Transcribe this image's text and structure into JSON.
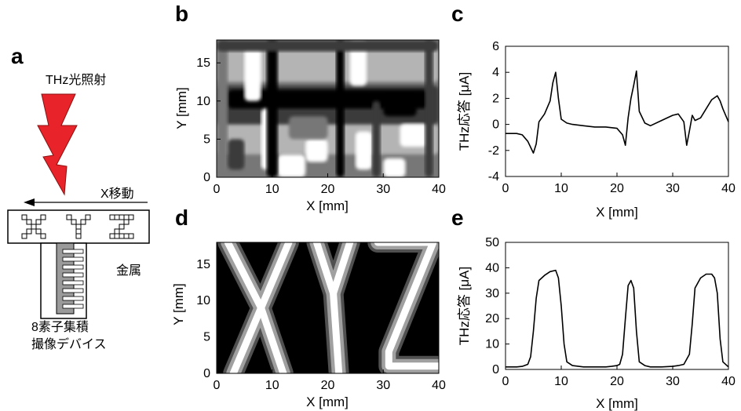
{
  "panel_labels": {
    "a": "a",
    "b": "b",
    "c": "c",
    "d": "d",
    "e": "e"
  },
  "schematic": {
    "thz_label": "THz光照射",
    "move_label": "X移動",
    "metal_label": "金属",
    "device_label_line1": "8素子集積",
    "device_label_line2": "撮像デバイス",
    "bolt_color": "#e8232a"
  },
  "chart_data": [
    {
      "id": "b",
      "type": "heatmap",
      "xlabel": "X [mm]",
      "ylabel": "Y [mm]",
      "xlim": [
        0,
        40
      ],
      "ylim": [
        0,
        18
      ],
      "x_ticks": [
        "0",
        "10",
        "20",
        "30",
        "40"
      ],
      "y_ticks": [
        "0",
        "5",
        "10",
        "15"
      ],
      "colors": [
        "#000000",
        "#3a3a3a",
        "#777777",
        "#b4b4b4",
        "#ffffff"
      ]
    },
    {
      "id": "c",
      "type": "line",
      "xlabel": "X [mm]",
      "ylabel": "THz応答 [μA]",
      "xlim": [
        0,
        40
      ],
      "ylim": [
        -4,
        6
      ],
      "x_ticks": [
        "0",
        "10",
        "20",
        "30",
        "40"
      ],
      "y_ticks": [
        "-4",
        "-2",
        "0",
        "2",
        "4",
        "6"
      ],
      "series": [
        {
          "x": [
            0,
            2,
            3,
            4,
            5,
            5.5,
            6,
            7,
            8,
            8.5,
            9,
            9.5,
            10,
            11,
            12,
            14,
            16,
            18,
            20,
            21,
            21.5,
            22,
            22.5,
            23,
            23.5,
            24,
            25,
            26,
            28,
            30,
            31,
            32,
            32.5,
            33,
            33.5,
            34,
            35,
            36,
            37,
            38,
            38.5,
            39,
            40
          ],
          "y": [
            -0.7,
            -0.7,
            -0.8,
            -1.3,
            -2.2,
            -1.5,
            0.2,
            0.8,
            1.8,
            3.2,
            4.0,
            2.0,
            0.4,
            0.1,
            0.0,
            -0.1,
            -0.2,
            -0.2,
            -0.3,
            -0.8,
            -1.6,
            0.5,
            2.0,
            3.0,
            4.1,
            1.0,
            0.1,
            -0.1,
            0.3,
            0.7,
            0.8,
            0.2,
            -1.6,
            -0.5,
            0.7,
            0.3,
            0.5,
            1.2,
            1.9,
            2.2,
            1.8,
            1.2,
            0.2
          ]
        }
      ]
    },
    {
      "id": "d",
      "type": "heatmap",
      "xlabel": "X [mm]",
      "ylabel": "Y [mm]",
      "xlim": [
        0,
        40
      ],
      "ylim": [
        0,
        18
      ],
      "x_ticks": [
        "0",
        "10",
        "20",
        "30",
        "40"
      ],
      "y_ticks": [
        "0",
        "5",
        "10",
        "15"
      ],
      "colors": [
        "#000000",
        "#505050",
        "#a0a0a0",
        "#ffffff"
      ]
    },
    {
      "id": "e",
      "type": "line",
      "xlabel": "X [mm]",
      "ylabel": "THz応答 [μA]",
      "xlim": [
        0,
        40
      ],
      "ylim": [
        0,
        50
      ],
      "x_ticks": [
        "0",
        "10",
        "20",
        "30",
        "40"
      ],
      "y_ticks": [
        "0",
        "10",
        "20",
        "30",
        "40",
        "50"
      ],
      "series": [
        {
          "x": [
            0,
            2,
            3,
            4,
            4.5,
            5,
            5.5,
            6,
            7,
            8,
            9,
            9.5,
            10,
            10.5,
            11,
            12,
            14,
            16,
            18,
            19,
            20,
            20.5,
            21,
            21.5,
            22,
            22.5,
            23,
            23.5,
            24,
            25,
            26,
            28,
            30,
            31,
            32,
            33,
            33.5,
            34,
            35,
            36,
            37,
            37.5,
            38,
            38.5,
            39,
            40
          ],
          "y": [
            1,
            1,
            1.2,
            2,
            5,
            15,
            28,
            35,
            37,
            38.5,
            39,
            36,
            25,
            10,
            3,
            1.5,
            1,
            1,
            1,
            1.2,
            1.5,
            2,
            6,
            20,
            33,
            35,
            32,
            15,
            3,
            1.5,
            1,
            1,
            1.2,
            1.5,
            2,
            6,
            18,
            32,
            36,
            37.5,
            37.5,
            36,
            30,
            12,
            3,
            1
          ]
        }
      ]
    }
  ]
}
